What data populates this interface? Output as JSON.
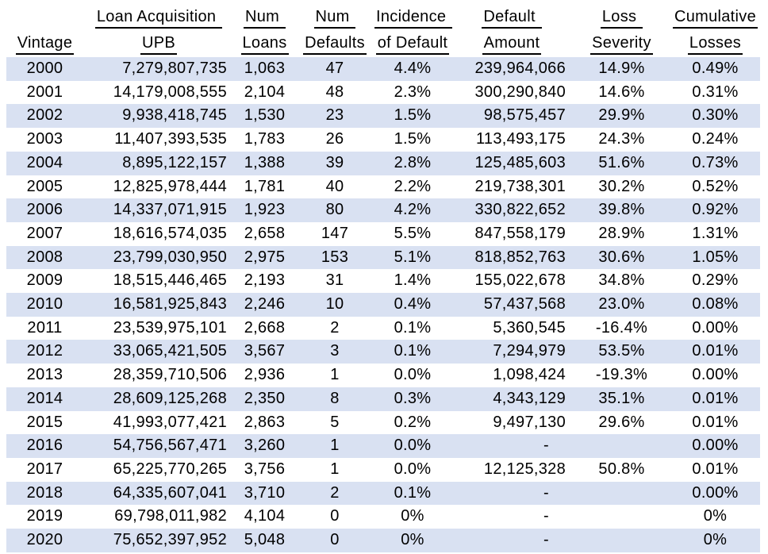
{
  "style": {
    "band_color": "#D9E1F2",
    "text_color": "#000000",
    "background_color": "#FFFFFF"
  },
  "table": {
    "columns": [
      {
        "id": "vintage",
        "header_line1": "",
        "header_line2": "Vintage",
        "align": "center"
      },
      {
        "id": "upb",
        "header_line1": "Loan Acquisition ",
        "header_line2": "UPB",
        "align": "right"
      },
      {
        "id": "num_loans",
        "header_line1": "Num ",
        "header_line2": "Loans",
        "align": "center"
      },
      {
        "id": "num_defaults",
        "header_line1": "Num ",
        "header_line2": "Defaults",
        "align": "center"
      },
      {
        "id": "incidence",
        "header_line1": "Incidence ",
        "header_line2": "of Default",
        "align": "center"
      },
      {
        "id": "default_amount",
        "header_line1": "Default ",
        "header_line2": "Amount",
        "align": "right"
      },
      {
        "id": "loss_severity",
        "header_line1": "Loss ",
        "header_line2": "Severity",
        "align": "center"
      },
      {
        "id": "cumulative",
        "header_line1": "Cumulative",
        "header_line2": "Losses",
        "align": "center"
      }
    ],
    "rows": [
      {
        "vintage": "2000",
        "upb": "7,279,807,735",
        "num_loans": "1,063",
        "num_defaults": "47",
        "incidence": "4.4%",
        "default_amount": "239,964,066",
        "loss_severity": "14.9%",
        "cumulative": "0.49%"
      },
      {
        "vintage": "2001",
        "upb": "14,179,008,555",
        "num_loans": "2,104",
        "num_defaults": "48",
        "incidence": "2.3%",
        "default_amount": "300,290,840",
        "loss_severity": "14.6%",
        "cumulative": "0.31%"
      },
      {
        "vintage": "2002",
        "upb": "9,938,418,745",
        "num_loans": "1,530",
        "num_defaults": "23",
        "incidence": "1.5%",
        "default_amount": "98,575,457",
        "loss_severity": "29.9%",
        "cumulative": "0.30%"
      },
      {
        "vintage": "2003",
        "upb": "11,407,393,535",
        "num_loans": "1,783",
        "num_defaults": "26",
        "incidence": "1.5%",
        "default_amount": "113,493,175",
        "loss_severity": "24.3%",
        "cumulative": "0.24%"
      },
      {
        "vintage": "2004",
        "upb": "8,895,122,157",
        "num_loans": "1,388",
        "num_defaults": "39",
        "incidence": "2.8%",
        "default_amount": "125,485,603",
        "loss_severity": "51.6%",
        "cumulative": "0.73%"
      },
      {
        "vintage": "2005",
        "upb": "12,825,978,444",
        "num_loans": "1,781",
        "num_defaults": "40",
        "incidence": "2.2%",
        "default_amount": "219,738,301",
        "loss_severity": "30.2%",
        "cumulative": "0.52%"
      },
      {
        "vintage": "2006",
        "upb": "14,337,071,915",
        "num_loans": "1,923",
        "num_defaults": "80",
        "incidence": "4.2%",
        "default_amount": "330,822,652",
        "loss_severity": "39.8%",
        "cumulative": "0.92%"
      },
      {
        "vintage": "2007",
        "upb": "18,616,574,035",
        "num_loans": "2,658",
        "num_defaults": "147",
        "incidence": "5.5%",
        "default_amount": "847,558,179",
        "loss_severity": "28.9%",
        "cumulative": "1.31%"
      },
      {
        "vintage": "2008",
        "upb": "23,799,030,950",
        "num_loans": "2,975",
        "num_defaults": "153",
        "incidence": "5.1%",
        "default_amount": "818,852,763",
        "loss_severity": "30.6%",
        "cumulative": "1.05%"
      },
      {
        "vintage": "2009",
        "upb": "18,515,446,465",
        "num_loans": "2,193",
        "num_defaults": "31",
        "incidence": "1.4%",
        "default_amount": "155,022,678",
        "loss_severity": "34.8%",
        "cumulative": "0.29%"
      },
      {
        "vintage": "2010",
        "upb": "16,581,925,843",
        "num_loans": "2,246",
        "num_defaults": "10",
        "incidence": "0.4%",
        "default_amount": "57,437,568",
        "loss_severity": "23.0%",
        "cumulative": "0.08%"
      },
      {
        "vintage": "2011",
        "upb": "23,539,975,101",
        "num_loans": "2,668",
        "num_defaults": "2",
        "incidence": "0.1%",
        "default_amount": "5,360,545",
        "loss_severity": "-16.4%",
        "cumulative": "0.00%"
      },
      {
        "vintage": "2012",
        "upb": "33,065,421,505",
        "num_loans": "3,567",
        "num_defaults": "3",
        "incidence": "0.1%",
        "default_amount": "7,294,979",
        "loss_severity": "53.5%",
        "cumulative": "0.01%"
      },
      {
        "vintage": "2013",
        "upb": "28,359,710,506",
        "num_loans": "2,936",
        "num_defaults": "1",
        "incidence": "0.0%",
        "default_amount": "1,098,424",
        "loss_severity": "-19.3%",
        "cumulative": "0.00%"
      },
      {
        "vintage": "2014",
        "upb": "28,609,125,268",
        "num_loans": "2,350",
        "num_defaults": "8",
        "incidence": "0.3%",
        "default_amount": "4,343,129",
        "loss_severity": "35.1%",
        "cumulative": "0.01%"
      },
      {
        "vintage": "2015",
        "upb": "41,993,077,421",
        "num_loans": "2,863",
        "num_defaults": "5",
        "incidence": "0.2%",
        "default_amount": "9,497,130",
        "loss_severity": "29.6%",
        "cumulative": "0.01%"
      },
      {
        "vintage": "2016",
        "upb": "54,756,567,471",
        "num_loans": "3,260",
        "num_defaults": "1",
        "incidence": "0.0%",
        "default_amount": "-",
        "loss_severity": "",
        "cumulative": "0.00%"
      },
      {
        "vintage": "2017",
        "upb": "65,225,770,265",
        "num_loans": "3,756",
        "num_defaults": "1",
        "incidence": "0.0%",
        "default_amount": "12,125,328",
        "loss_severity": "50.8%",
        "cumulative": "0.01%"
      },
      {
        "vintage": "2018",
        "upb": "64,335,607,041",
        "num_loans": "3,710",
        "num_defaults": "2",
        "incidence": "0.1%",
        "default_amount": "-",
        "loss_severity": "",
        "cumulative": "0.00%"
      },
      {
        "vintage": "2019",
        "upb": "69,798,011,982",
        "num_loans": "4,104",
        "num_defaults": "0",
        "incidence": "0%",
        "default_amount": "-",
        "loss_severity": "",
        "cumulative": "0%"
      },
      {
        "vintage": "2020",
        "upb": "75,652,397,952",
        "num_loans": "5,048",
        "num_defaults": "0",
        "incidence": "0%",
        "default_amount": "-",
        "loss_severity": "",
        "cumulative": "0%"
      }
    ]
  }
}
